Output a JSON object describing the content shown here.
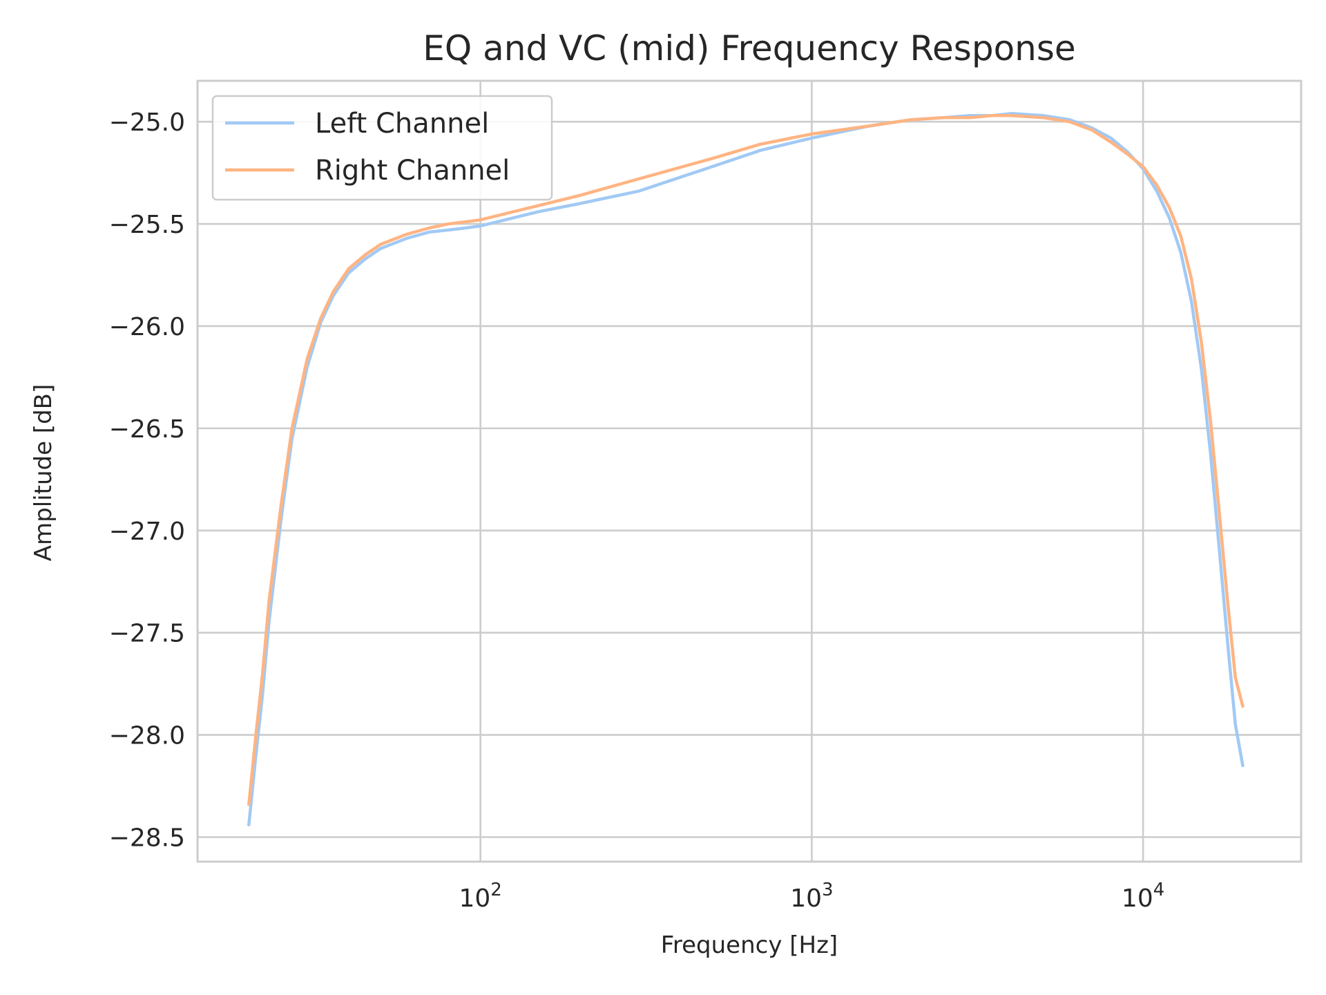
{
  "chart_data": {
    "type": "line",
    "title": "EQ and VC (mid) Frequency Response",
    "xlabel": "Frequency [Hz]",
    "ylabel": "Amplitude [dB]",
    "xscale": "log",
    "xlim": [
      14,
      30000
    ],
    "ylim": [
      -28.62,
      -24.8
    ],
    "grid": true,
    "legend_position": "top-left",
    "x_ticks": [
      {
        "value": 100,
        "base": "10",
        "exp": "2"
      },
      {
        "value": 1000,
        "base": "10",
        "exp": "3"
      },
      {
        "value": 10000,
        "base": "10",
        "exp": "4"
      }
    ],
    "y_ticks": [
      {
        "value": -25.0,
        "label": "−25.0"
      },
      {
        "value": -25.5,
        "label": "−25.5"
      },
      {
        "value": -26.0,
        "label": "−26.0"
      },
      {
        "value": -26.5,
        "label": "−26.5"
      },
      {
        "value": -27.0,
        "label": "−27.0"
      },
      {
        "value": -27.5,
        "label": "−27.5"
      },
      {
        "value": -28.0,
        "label": "−28.0"
      },
      {
        "value": -28.5,
        "label": "−28.5"
      }
    ],
    "series": [
      {
        "name": "Left Channel",
        "color": "#a1c9f4",
        "x": [
          20,
          21,
          22,
          23,
          25,
          27,
          30,
          33,
          36,
          40,
          45,
          50,
          60,
          70,
          80,
          90,
          100,
          150,
          200,
          300,
          500,
          700,
          1000,
          1500,
          2000,
          2500,
          3000,
          3500,
          4000,
          5000,
          6000,
          7000,
          8000,
          9000,
          10000,
          11000,
          12000,
          13000,
          14000,
          15000,
          16000,
          17000,
          18000,
          19000,
          20000
        ],
        "y": [
          -28.44,
          -28.1,
          -27.8,
          -27.45,
          -26.95,
          -26.55,
          -26.2,
          -25.98,
          -25.85,
          -25.74,
          -25.67,
          -25.62,
          -25.57,
          -25.54,
          -25.53,
          -25.52,
          -25.51,
          -25.44,
          -25.4,
          -25.34,
          -25.22,
          -25.14,
          -25.08,
          -25.02,
          -24.99,
          -24.98,
          -24.97,
          -24.97,
          -24.96,
          -24.97,
          -24.99,
          -25.03,
          -25.08,
          -25.15,
          -25.23,
          -25.34,
          -25.47,
          -25.64,
          -25.88,
          -26.21,
          -26.63,
          -27.1,
          -27.55,
          -27.95,
          -28.15
        ]
      },
      {
        "name": "Right Channel",
        "color": "#ffb482",
        "x": [
          20,
          21,
          22,
          23,
          25,
          27,
          30,
          33,
          36,
          40,
          45,
          50,
          60,
          70,
          80,
          90,
          100,
          150,
          200,
          300,
          500,
          700,
          1000,
          1500,
          2000,
          2500,
          3000,
          3500,
          4000,
          5000,
          6000,
          7000,
          8000,
          9000,
          10000,
          11000,
          12000,
          13000,
          14000,
          15000,
          16000,
          17000,
          18000,
          19000,
          20000
        ],
        "y": [
          -28.34,
          -28.0,
          -27.7,
          -27.35,
          -26.88,
          -26.5,
          -26.16,
          -25.96,
          -25.83,
          -25.72,
          -25.65,
          -25.6,
          -25.55,
          -25.52,
          -25.5,
          -25.49,
          -25.48,
          -25.41,
          -25.36,
          -25.28,
          -25.18,
          -25.11,
          -25.06,
          -25.02,
          -24.99,
          -24.98,
          -24.98,
          -24.97,
          -24.97,
          -24.98,
          -25.0,
          -25.04,
          -25.1,
          -25.16,
          -25.22,
          -25.31,
          -25.42,
          -25.56,
          -25.77,
          -26.08,
          -26.47,
          -26.92,
          -27.35,
          -27.72,
          -27.86
        ]
      }
    ]
  }
}
